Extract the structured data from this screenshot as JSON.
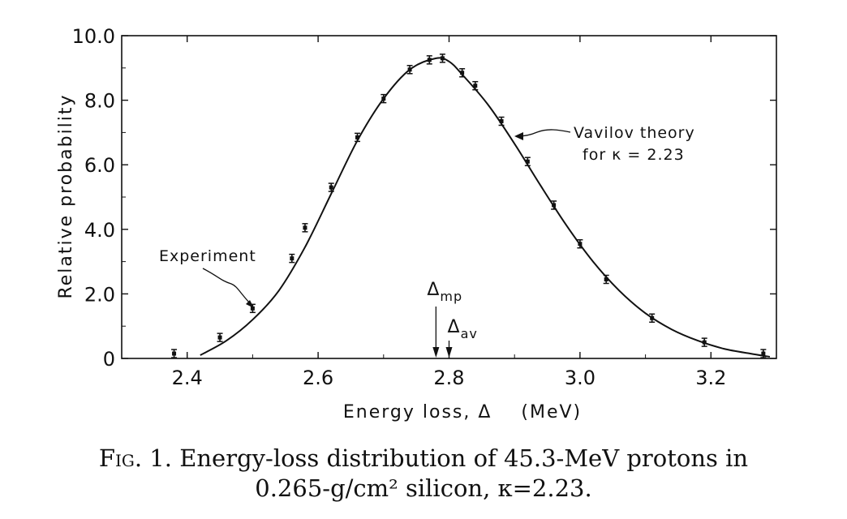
{
  "chart_data": {
    "type": "scatter",
    "xlabel": "Energy loss, Δ    (MeV)",
    "ylabel": "Relative probability",
    "xlim": [
      2.3,
      3.3
    ],
    "ylim": [
      0,
      10
    ],
    "x_ticks": [
      {
        "value": 2.4,
        "label": "2.4"
      },
      {
        "value": 2.6,
        "label": "2.6"
      },
      {
        "value": 2.8,
        "label": "2.8"
      },
      {
        "value": 3.0,
        "label": "3.0"
      },
      {
        "value": 3.2,
        "label": "3.2"
      }
    ],
    "y_ticks": [
      {
        "value": 0,
        "label": "0"
      },
      {
        "value": 2,
        "label": "2.0"
      },
      {
        "value": 4,
        "label": "4.0"
      },
      {
        "value": 6,
        "label": "6.0"
      },
      {
        "value": 8,
        "label": "8.0"
      },
      {
        "value": 10,
        "label": "10.0"
      }
    ],
    "grid": false,
    "series": [
      {
        "name": "Experiment",
        "style": "points-with-error-bars",
        "x": [
          2.38,
          2.45,
          2.5,
          2.56,
          2.58,
          2.62,
          2.66,
          2.7,
          2.74,
          2.77,
          2.79,
          2.82,
          2.84,
          2.88,
          2.92,
          2.96,
          3.0,
          3.04,
          3.11,
          3.19,
          3.28
        ],
        "y": [
          0.15,
          0.65,
          1.55,
          3.1,
          4.05,
          5.3,
          6.85,
          8.05,
          8.95,
          9.25,
          9.3,
          8.85,
          8.45,
          7.35,
          6.1,
          4.75,
          3.55,
          2.45,
          1.25,
          0.5,
          0.15
        ]
      },
      {
        "name": "Vavilov theory for κ = 2.23",
        "style": "curve",
        "x": [
          2.42,
          2.46,
          2.5,
          2.54,
          2.58,
          2.62,
          2.66,
          2.7,
          2.74,
          2.78,
          2.8,
          2.82,
          2.86,
          2.9,
          2.94,
          2.98,
          3.02,
          3.06,
          3.1,
          3.14,
          3.18,
          3.22,
          3.26,
          3.29
        ],
        "y": [
          0.1,
          0.55,
          1.2,
          2.1,
          3.45,
          5.1,
          6.75,
          8.05,
          8.95,
          9.3,
          9.2,
          8.8,
          7.85,
          6.65,
          5.35,
          4.1,
          3.0,
          2.1,
          1.4,
          0.9,
          0.55,
          0.3,
          0.15,
          0.05
        ]
      }
    ],
    "annotations": {
      "experiment": "Experiment",
      "theory_line1": "Vavilov theory",
      "theory_line2": "for κ = 2.23",
      "mp_symbol": "Δ",
      "mp_sub": "mp",
      "av_symbol": "Δ",
      "av_sub": "av",
      "mp_x": 2.78,
      "av_x": 2.8
    }
  },
  "caption": {
    "fig_label": "Fig.",
    "line1_rest": " 1. Energy-loss distribution of 45.3-MeV protons in",
    "line2": "0.265-g/cm² silicon, κ=2.23."
  }
}
